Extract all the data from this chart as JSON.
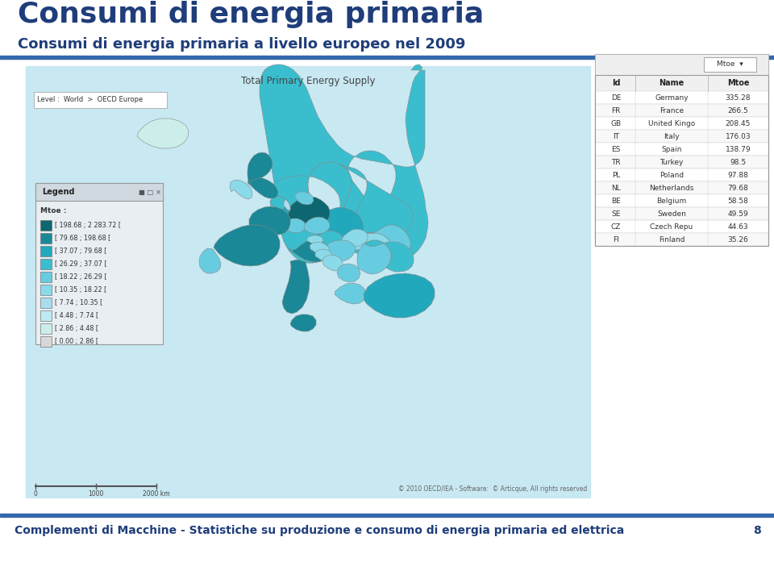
{
  "title": "Consumi di energia primaria",
  "subtitle": "Consumi di energia primaria a livello europeo nel 2009",
  "footer_text": "Complementi di Macchine - Statistiche su produzione e consumo di energia primaria ed elettrica",
  "page_number": "8",
  "title_color": "#1F3D7A",
  "subtitle_color": "#1F3D7A",
  "footer_color": "#1F3D7A",
  "title_fontsize": 26,
  "subtitle_fontsize": 13,
  "footer_fontsize": 10,
  "top_bar_color": "#3468AA",
  "bottom_bar_color": "#3468AA",
  "background_color": "#FFFFFF",
  "map_bg_color": "#C8E8F2",
  "table_headers": [
    "Id",
    "Name",
    "Mtoe"
  ],
  "table_data": [
    [
      "DE",
      "Germany",
      "335.28"
    ],
    [
      "FR",
      "France",
      "266.5"
    ],
    [
      "GB",
      "United Kingo",
      "208.45"
    ],
    [
      "IT",
      "Italy",
      "176.03"
    ],
    [
      "ES",
      "Spain",
      "138.79"
    ],
    [
      "TR",
      "Turkey",
      "98.5"
    ],
    [
      "PL",
      "Poland",
      "97.88"
    ],
    [
      "NL",
      "Netherlands",
      "79.68"
    ],
    [
      "BE",
      "Belgium",
      "58.58"
    ],
    [
      "SE",
      "Sweden",
      "49.59"
    ],
    [
      "CZ",
      "Czech Repu",
      "44.63"
    ],
    [
      "FI",
      "Finland",
      "35.26"
    ]
  ],
  "legend_ranges": [
    "[ 198.68 ; 2 283.72 [",
    "[ 79.68 ; 198.68 [",
    "[ 37.07 ; 79.68 [",
    "[ 26.29 ; 37.07 [",
    "[ 18.22 ; 26.29 [",
    "[ 10.35 ; 18.22 [",
    "[ 7.74 ; 10.35 [",
    "[ 4.48 ; 7.74 [",
    "[ 2.86 ; 4.48 [",
    "[ 0.00 ; 2.86 ["
  ],
  "legend_colors": [
    "#0D6670",
    "#1A8896",
    "#22A8BC",
    "#3ABECE",
    "#68CCE0",
    "#8ADAEA",
    "#AADDF0",
    "#BEEAF6",
    "#CCEEEA",
    "#D8D8D8"
  ],
  "map_title": "Total Primary Energy Supply",
  "map_level_text": "Level :  World  >  OECD Europe",
  "map_copyright": "© 2010 OECD/IEA - Software:  © Articque, All rights reserved"
}
